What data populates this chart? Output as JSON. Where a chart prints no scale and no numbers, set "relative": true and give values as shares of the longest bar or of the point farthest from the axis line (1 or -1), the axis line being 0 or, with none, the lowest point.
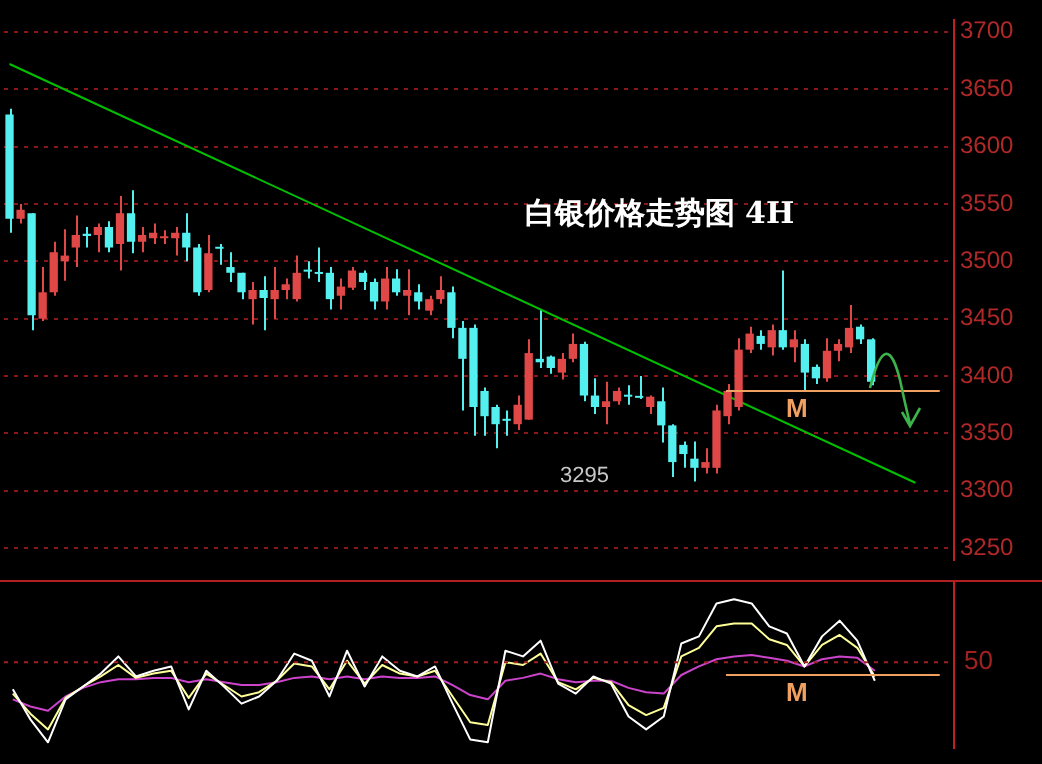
{
  "chart_data": [
    {
      "type": "candlestick",
      "title": "白银价格走势图 4H",
      "categories": [
        null,
        null,
        null,
        null,
        null,
        null,
        null,
        null,
        null,
        null,
        null,
        null,
        null,
        null,
        null,
        null,
        null,
        null,
        null,
        null,
        null,
        null,
        null,
        null,
        null,
        null,
        null,
        null,
        null,
        null,
        null,
        null,
        null,
        null,
        null,
        null,
        null,
        null,
        null,
        null,
        null,
        null,
        null,
        null,
        null,
        null,
        null,
        null,
        null,
        null,
        null,
        null,
        null,
        null,
        null,
        null,
        null,
        null,
        null,
        null,
        null,
        null,
        null,
        null,
        null,
        null,
        null,
        null,
        null,
        null,
        null,
        null,
        null,
        null,
        null,
        null,
        null,
        null,
        null,
        null,
        null,
        null,
        null,
        null,
        null,
        null
      ],
      "series": [
        {
          "type": "candlestick",
          "ohlc": [
            [
              3628,
              3633,
              3525,
              3537
            ],
            [
              3537,
              3550,
              3533,
              3545
            ],
            [
              3542,
              3542,
              3440,
              3453
            ],
            [
              3450,
              3495,
              3448,
              3473
            ],
            [
              3473,
              3517,
              3470,
              3508
            ],
            [
              3500,
              3528,
              3483,
              3505
            ],
            [
              3512,
              3540,
              3495,
              3523
            ],
            [
              3524,
              3530,
              3512,
              3522
            ],
            [
              3523,
              3533,
              3508,
              3530
            ],
            [
              3530,
              3535,
              3508,
              3512
            ],
            [
              3515,
              3557,
              3492,
              3542
            ],
            [
              3542,
              3562,
              3507,
              3517
            ],
            [
              3517,
              3530,
              3508,
              3523
            ],
            [
              3520,
              3533,
              3515,
              3525
            ],
            [
              3520,
              3527,
              3515,
              3521
            ],
            [
              3520,
              3530,
              3505,
              3525
            ],
            [
              3525,
              3542,
              3500,
              3512
            ],
            [
              3512,
              3515,
              3470,
              3473
            ],
            [
              3475,
              3523,
              3473,
              3507
            ],
            [
              3512,
              3515,
              3497,
              3511
            ],
            [
              3495,
              3508,
              3482,
              3490
            ],
            [
              3490,
              3490,
              3467,
              3473
            ],
            [
              3467,
              3482,
              3445,
              3475
            ],
            [
              3475,
              3487,
              3440,
              3468
            ],
            [
              3467,
              3495,
              3450,
              3475
            ],
            [
              3475,
              3485,
              3467,
              3480
            ],
            [
              3467,
              3505,
              3465,
              3490
            ],
            [
              3492,
              3500,
              3485,
              3491
            ],
            [
              3490,
              3512,
              3482,
              3489
            ],
            [
              3490,
              3495,
              3458,
              3467
            ],
            [
              3470,
              3485,
              3458,
              3478
            ],
            [
              3477,
              3495,
              3475,
              3492
            ],
            [
              3490,
              3492,
              3475,
              3482
            ],
            [
              3482,
              3485,
              3458,
              3465
            ],
            [
              3465,
              3495,
              3458,
              3485
            ],
            [
              3485,
              3493,
              3470,
              3473
            ],
            [
              3470,
              3493,
              3453,
              3475
            ],
            [
              3473,
              3480,
              3458,
              3465
            ],
            [
              3457,
              3470,
              3453,
              3467
            ],
            [
              3467,
              3487,
              3463,
              3475
            ],
            [
              3473,
              3478,
              3433,
              3442
            ],
            [
              3442,
              3448,
              3370,
              3415
            ],
            [
              3442,
              3445,
              3348,
              3373
            ],
            [
              3387,
              3390,
              3348,
              3365
            ],
            [
              3373,
              3375,
              3337,
              3358
            ],
            [
              3362,
              3370,
              3348,
              3361
            ],
            [
              3358,
              3383,
              3353,
              3375
            ],
            [
              3362,
              3432,
              3362,
              3420
            ],
            [
              3415,
              3458,
              3407,
              3412
            ],
            [
              3417,
              3418,
              3402,
              3407
            ],
            [
              3403,
              3420,
              3397,
              3415
            ],
            [
              3415,
              3437,
              3412,
              3428
            ],
            [
              3428,
              3430,
              3378,
              3383
            ],
            [
              3383,
              3398,
              3367,
              3373
            ],
            [
              3373,
              3395,
              3358,
              3378
            ],
            [
              3378,
              3390,
              3375,
              3387
            ],
            [
              3383,
              3392,
              3375,
              3382
            ],
            [
              3382,
              3400,
              3380,
              3381
            ],
            [
              3373,
              3383,
              3367,
              3382
            ],
            [
              3378,
              3390,
              3342,
              3357
            ],
            [
              3357,
              3358,
              3312,
              3325
            ],
            [
              3340,
              3343,
              3320,
              3332
            ],
            [
              3328,
              3343,
              3308,
              3320
            ],
            [
              3320,
              3337,
              3315,
              3325
            ],
            [
              3320,
              3375,
              3315,
              3370
            ],
            [
              3365,
              3393,
              3358,
              3387
            ],
            [
              3373,
              3433,
              3370,
              3423
            ],
            [
              3423,
              3443,
              3420,
              3437
            ],
            [
              3435,
              3440,
              3423,
              3428
            ],
            [
              3425,
              3445,
              3418,
              3440
            ],
            [
              3440,
              3492,
              3423,
              3425
            ],
            [
              3425,
              3440,
              3412,
              3432
            ],
            [
              3428,
              3432,
              3387,
              3403
            ],
            [
              3408,
              3410,
              3393,
              3398
            ],
            [
              3398,
              3433,
              3395,
              3422
            ],
            [
              3422,
              3432,
              3413,
              3428
            ],
            [
              3425,
              3462,
              3420,
              3442
            ],
            [
              3443,
              3445,
              3428,
              3432
            ],
            [
              3432,
              3433,
              3392,
              3395
            ],
            null,
            null,
            null,
            null,
            null,
            null,
            null
          ]
        },
        {
          "type": "line",
          "color": "#00c000",
          "values": [
            3672,
            null,
            null,
            null,
            null,
            null,
            null,
            null,
            null,
            null,
            null,
            null,
            null,
            null,
            null,
            null,
            null,
            null,
            null,
            null,
            null,
            null,
            null,
            null,
            null,
            null,
            null,
            null,
            null,
            null,
            null,
            null,
            null,
            null,
            null,
            null,
            null,
            null,
            null,
            null,
            null,
            null,
            null,
            null,
            null,
            null,
            null,
            null,
            null,
            null,
            null,
            null,
            null,
            null,
            null,
            null,
            null,
            null,
            null,
            null,
            null,
            null,
            null,
            null,
            null,
            null,
            null,
            null,
            null,
            null,
            null,
            null,
            null,
            null,
            null,
            null,
            null,
            null,
            null,
            null,
            null,
            null,
            3307,
            null,
            null,
            null
          ]
        }
      ],
      "ylim": [
        3240,
        3710
      ],
      "yticks": [
        3250,
        3300,
        3350,
        3400,
        3450,
        3500,
        3550,
        3600,
        3650,
        3700
      ],
      "grid": "y",
      "ref_lines": [
        {
          "axis": "y",
          "value": 3387,
          "label": "M",
          "color": "#f0a060"
        }
      ],
      "annotations": [
        "3295"
      ]
    },
    {
      "type": "line",
      "relative": true,
      "categories": [
        null,
        null,
        null,
        null,
        null,
        null,
        null,
        null,
        null,
        null,
        null,
        null,
        null,
        null,
        null,
        null,
        null,
        null,
        null,
        null,
        null,
        null,
        null,
        null,
        null,
        null,
        null,
        null,
        null,
        null,
        null,
        null,
        null,
        null,
        null,
        null,
        null,
        null,
        null,
        null,
        null,
        null,
        null,
        null,
        null,
        null,
        null,
        null,
        null,
        null,
        null,
        null,
        null,
        null
      ],
      "series": [
        {
          "color": "#ffffff",
          "values": [
            0.37,
            0.16,
            0,
            0.3,
            0.39,
            0.48,
            0.6,
            0.46,
            0.5,
            0.53,
            0.23,
            0.5,
            0.39,
            0.27,
            0.32,
            0.43,
            0.62,
            0.57,
            0.32,
            0.64,
            0.39,
            0.6,
            0.5,
            0.46,
            0.53,
            0.27,
            0.02,
            0,
            0.64,
            0.6,
            0.71,
            0.41,
            0.34,
            0.46,
            0.41,
            0.18,
            0.09,
            0.18,
            0.69,
            0.74,
            0.97,
            1,
            0.97,
            0.81,
            0.76,
            0.53,
            0.74,
            0.85,
            0.71,
            0.43,
            null,
            null,
            null,
            null
          ]
        },
        {
          "color": "#ffff99",
          "values": [
            0.34,
            0.2,
            0.09,
            0.31,
            0.39,
            0.46,
            0.54,
            0.45,
            0.48,
            0.5,
            0.31,
            0.48,
            0.4,
            0.32,
            0.35,
            0.43,
            0.55,
            0.53,
            0.37,
            0.57,
            0.41,
            0.54,
            0.48,
            0.46,
            0.5,
            0.32,
            0.14,
            0.12,
            0.56,
            0.54,
            0.62,
            0.42,
            0.37,
            0.45,
            0.42,
            0.26,
            0.19,
            0.24,
            0.6,
            0.66,
            0.81,
            0.83,
            0.83,
            0.72,
            0.68,
            0.53,
            0.68,
            0.75,
            0.66,
            0.46,
            null,
            null,
            null,
            null
          ]
        },
        {
          "color": "#cc44cc",
          "values": [
            0.3,
            0.25,
            0.22,
            0.32,
            0.38,
            0.42,
            0.44,
            0.44,
            0.45,
            0.45,
            0.42,
            0.44,
            0.42,
            0.4,
            0.4,
            0.42,
            0.45,
            0.46,
            0.44,
            0.46,
            0.44,
            0.46,
            0.45,
            0.45,
            0.46,
            0.4,
            0.33,
            0.3,
            0.43,
            0.45,
            0.48,
            0.44,
            0.42,
            0.43,
            0.43,
            0.38,
            0.35,
            0.34,
            0.47,
            0.53,
            0.58,
            0.6,
            0.61,
            0.59,
            0.57,
            0.53,
            0.58,
            0.6,
            0.59,
            0.5,
            null,
            null,
            null,
            null
          ]
        }
      ],
      "annotations": [
        "50"
      ],
      "ref_lines": [
        {
          "axis": "y",
          "value": 0.56,
          "color": "#a02020",
          "line_style": "dotted"
        },
        {
          "axis": "y",
          "value": 0.47,
          "label": "M",
          "color": "#f0a060"
        }
      ]
    }
  ]
}
